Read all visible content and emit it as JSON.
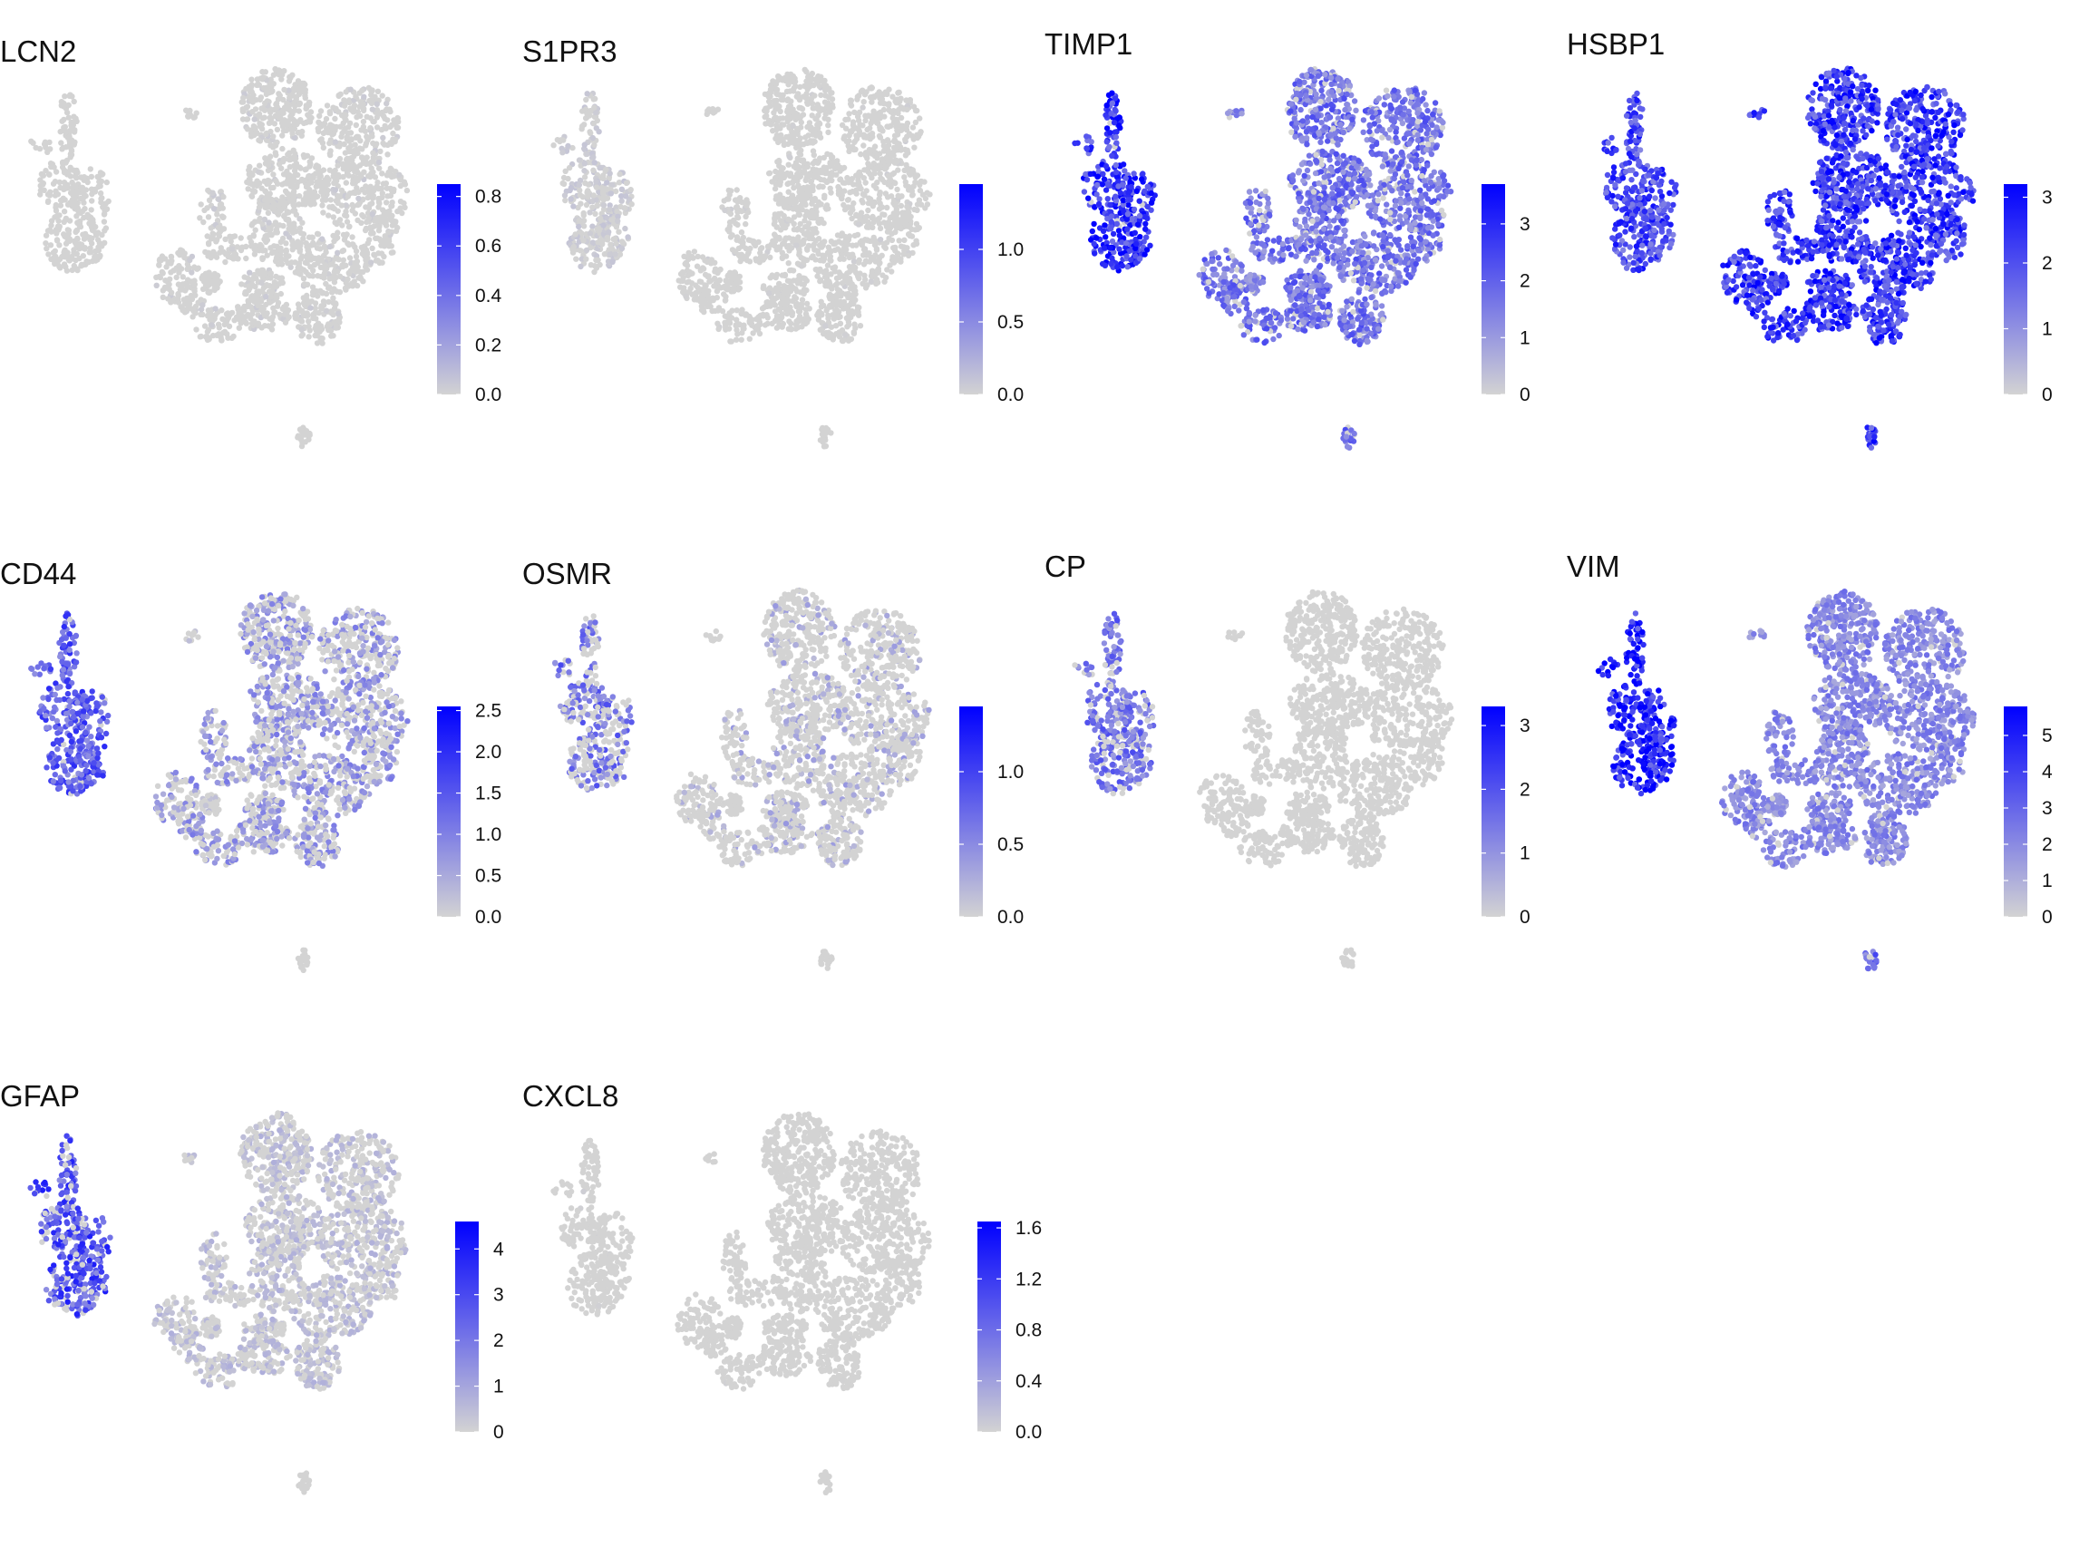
{
  "figure": {
    "type": "feature-plot",
    "description_colors": {
      "low": "#d3d3d3",
      "high": "#0000ff"
    }
  },
  "chart_data": [
    {
      "type": "scatter",
      "title": "LCN2",
      "legend_range": [
        0,
        0.85
      ],
      "legend_ticks": [
        "0.0",
        "0.2",
        "0.4",
        "0.6",
        "0.8"
      ],
      "tick_values": [
        0,
        0.2,
        0.4,
        0.6,
        0.8
      ],
      "expr_level": {
        "a": 0.02,
        "b": 0.03,
        "c": 0.0,
        "d": 0.0,
        "e": 0.0
      },
      "expr_density": {
        "a": 0.0,
        "b": 0.08,
        "c": 0.0,
        "d": 0.0,
        "e": 0.0
      }
    },
    {
      "type": "scatter",
      "title": "S1PR3",
      "legend_range": [
        0,
        1.45
      ],
      "legend_ticks": [
        "0.0",
        "0.5",
        "1.0"
      ],
      "tick_values": [
        0,
        0.5,
        1.0
      ],
      "expr_level": {
        "a": 0.05,
        "b": 0.02,
        "c": 0.0,
        "d": 0.0,
        "e": 0.0
      },
      "expr_density": {
        "a": 0.45,
        "b": 0.02,
        "c": 0.0,
        "d": 0.0,
        "e": 0.0
      }
    },
    {
      "type": "scatter",
      "title": "TIMP1",
      "legend_range": [
        0,
        3.7
      ],
      "legend_ticks": [
        "0",
        "1",
        "2",
        "3"
      ],
      "tick_values": [
        0,
        1,
        2,
        3
      ],
      "expr_level": {
        "a": 0.75,
        "b": 0.45,
        "c": 0.35,
        "d": 0.35,
        "e": 0.45
      },
      "expr_density": {
        "a": 0.98,
        "b": 0.9,
        "c": 0.8,
        "d": 0.9,
        "e": 0.85
      }
    },
    {
      "type": "scatter",
      "title": "HSBP1",
      "legend_range": [
        0,
        3.2
      ],
      "legend_ticks": [
        "0",
        "1",
        "2",
        "3"
      ],
      "tick_values": [
        0,
        1,
        2,
        3
      ],
      "expr_level": {
        "a": 0.65,
        "b": 0.72,
        "c": 0.7,
        "d": 0.72,
        "e": 0.7
      },
      "expr_density": {
        "a": 1.0,
        "b": 1.0,
        "c": 1.0,
        "d": 1.0,
        "e": 1.0
      }
    },
    {
      "type": "scatter",
      "title": "CD44",
      "legend_range": [
        0,
        2.55
      ],
      "legend_ticks": [
        "0.0",
        "0.5",
        "1.0",
        "1.5",
        "2.0",
        "2.5"
      ],
      "tick_values": [
        0,
        0.5,
        1.0,
        1.5,
        2.0,
        2.5
      ],
      "expr_level": {
        "a": 0.55,
        "b": 0.3,
        "c": 0.1,
        "d": 0.1,
        "e": 0.0
      },
      "expr_density": {
        "a": 0.95,
        "b": 0.5,
        "c": 0.2,
        "d": 0.2,
        "e": 0.0
      }
    },
    {
      "type": "scatter",
      "title": "OSMR",
      "legend_range": [
        0,
        1.45
      ],
      "legend_ticks": [
        "0.0",
        "0.5",
        "1.0"
      ],
      "tick_values": [
        0,
        0.5,
        1.0
      ],
      "expr_level": {
        "a": 0.45,
        "b": 0.2,
        "c": 0.0,
        "d": 0.0,
        "e": 0.0
      },
      "expr_density": {
        "a": 0.5,
        "b": 0.18,
        "c": 0.0,
        "d": 0.0,
        "e": 0.0
      }
    },
    {
      "type": "scatter",
      "title": "CP",
      "legend_range": [
        0,
        3.3
      ],
      "legend_ticks": [
        "0",
        "1",
        "2",
        "3"
      ],
      "tick_values": [
        0,
        1,
        2,
        3
      ],
      "expr_level": {
        "a": 0.45,
        "b": 0.0,
        "c": 0.0,
        "d": 0.0,
        "e": 0.0
      },
      "expr_density": {
        "a": 0.75,
        "b": 0.01,
        "c": 0.0,
        "d": 0.0,
        "e": 0.0
      }
    },
    {
      "type": "scatter",
      "title": "VIM",
      "legend_range": [
        0,
        5.8
      ],
      "legend_ticks": [
        "0",
        "1",
        "2",
        "3",
        "4",
        "5"
      ],
      "tick_values": [
        0,
        1,
        2,
        3,
        4,
        5
      ],
      "expr_level": {
        "a": 0.85,
        "b": 0.35,
        "c": 0.3,
        "d": 0.3,
        "e": 0.5
      },
      "expr_density": {
        "a": 1.0,
        "b": 0.95,
        "c": 0.9,
        "d": 0.9,
        "e": 0.9
      }
    },
    {
      "type": "scatter",
      "title": "GFAP",
      "legend_range": [
        0,
        4.6
      ],
      "legend_ticks": [
        "0",
        "1",
        "2",
        "3",
        "4"
      ],
      "tick_values": [
        0,
        1,
        2,
        3,
        4
      ],
      "expr_level": {
        "a": 0.6,
        "b": 0.12,
        "c": 0.1,
        "d": 0.1,
        "e": 0.0
      },
      "expr_density": {
        "a": 0.85,
        "b": 0.4,
        "c": 0.3,
        "d": 0.3,
        "e": 0.0
      }
    },
    {
      "type": "scatter",
      "title": "CXCL8",
      "legend_range": [
        0,
        1.65
      ],
      "legend_ticks": [
        "0.0",
        "0.4",
        "0.8",
        "1.2",
        "1.6"
      ],
      "tick_values": [
        0,
        0.4,
        0.8,
        1.2,
        1.6
      ],
      "expr_level": {
        "a": 0.02,
        "b": 0.01,
        "c": 0.0,
        "d": 0.0,
        "e": 0.0
      },
      "expr_density": {
        "a": 0.02,
        "b": 0.01,
        "c": 0.0,
        "d": 0.0,
        "e": 0.0
      }
    }
  ]
}
